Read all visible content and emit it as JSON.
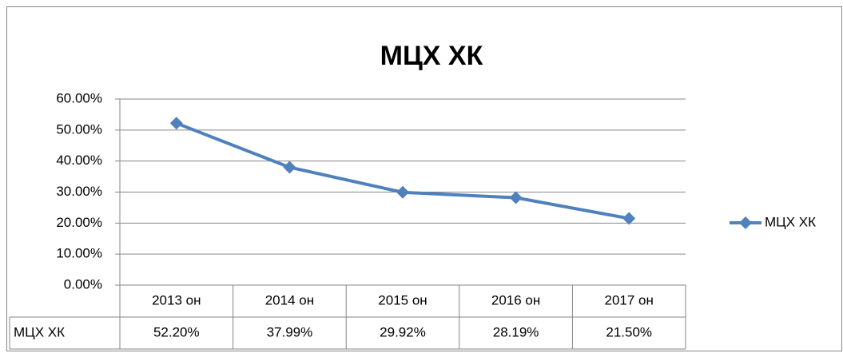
{
  "chart_data": {
    "type": "line",
    "title": "МЦХ ХК",
    "categories": [
      "2013 он",
      "2014 он",
      "2015 он",
      "2016 он",
      "2017 он"
    ],
    "series": [
      {
        "name": "МЦХ ХК",
        "color": "#4f81bd",
        "values": [
          52.2,
          37.99,
          29.92,
          28.19,
          21.5
        ],
        "value_labels": [
          "52.20%",
          "37.99%",
          "29.92%",
          "28.19%",
          "21.50%"
        ]
      }
    ],
    "ylim": [
      0,
      60
    ],
    "yticks": [
      {
        "value": 0,
        "label": "0.00%"
      },
      {
        "value": 10,
        "label": "10.00%"
      },
      {
        "value": 20,
        "label": "20.00%"
      },
      {
        "value": 30,
        "label": "30.00%"
      },
      {
        "value": 40,
        "label": "40.00%"
      },
      {
        "value": 50,
        "label": "50.00%"
      },
      {
        "value": 60,
        "label": "60.00%"
      }
    ],
    "grid": true,
    "legend": "right"
  }
}
